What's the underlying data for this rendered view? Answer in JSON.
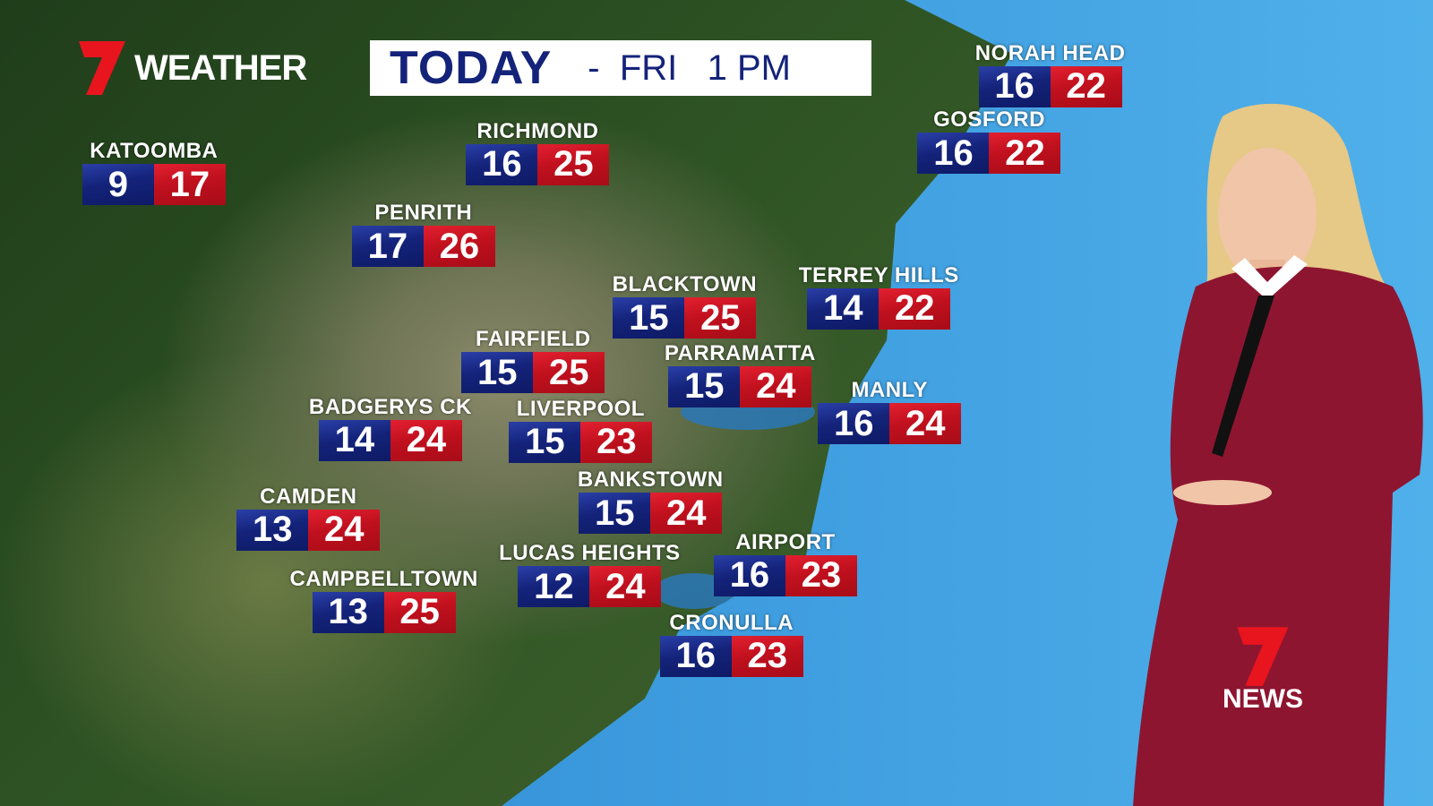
{
  "brand": {
    "logo_word": "WEATHER",
    "news_word": "NEWS",
    "accent_red": "#e3101e",
    "accent_blue": "#14237a"
  },
  "title": {
    "day": "TODAY",
    "rest": "-  FRI   1 PM"
  },
  "cities": [
    {
      "name": "KATOOMBA",
      "min": "9",
      "max": "17"
    },
    {
      "name": "RICHMOND",
      "min": "16",
      "max": "25"
    },
    {
      "name": "PENRITH",
      "min": "17",
      "max": "26"
    },
    {
      "name": "BLACKTOWN",
      "min": "15",
      "max": "25"
    },
    {
      "name": "TERREY HILLS",
      "min": "14",
      "max": "22"
    },
    {
      "name": "FAIRFIELD",
      "min": "15",
      "max": "25"
    },
    {
      "name": "PARRAMATTA",
      "min": "15",
      "max": "24"
    },
    {
      "name": "MANLY",
      "min": "16",
      "max": "24"
    },
    {
      "name": "BADGERYS CK",
      "min": "14",
      "max": "24"
    },
    {
      "name": "LIVERPOOL",
      "min": "15",
      "max": "23"
    },
    {
      "name": "BANKSTOWN",
      "min": "15",
      "max": "24"
    },
    {
      "name": "CAMDEN",
      "min": "13",
      "max": "24"
    },
    {
      "name": "AIRPORT",
      "min": "16",
      "max": "23"
    },
    {
      "name": "LUCAS HEIGHTS",
      "min": "12",
      "max": "24"
    },
    {
      "name": "CAMPBELLTOWN",
      "min": "13",
      "max": "25"
    },
    {
      "name": "CRONULLA",
      "min": "16",
      "max": "23"
    },
    {
      "name": "NORAH HEAD",
      "min": "16",
      "max": "22"
    },
    {
      "name": "GOSFORD",
      "min": "16",
      "max": "22"
    }
  ]
}
